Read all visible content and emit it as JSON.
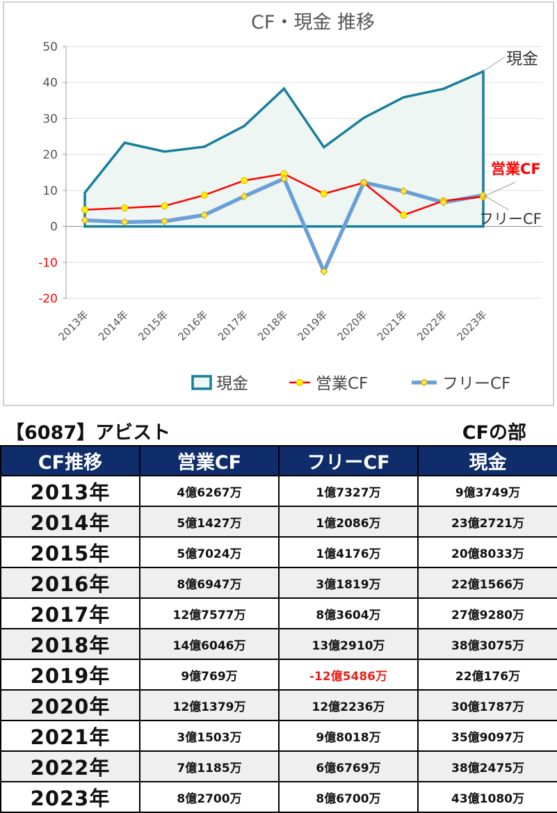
{
  "chart_data": {
    "type": "line",
    "title": "CF・現金 推移",
    "categories": [
      "2013年",
      "2014年",
      "2015年",
      "2016年",
      "2017年",
      "2018年",
      "2019年",
      "2020年",
      "2021年",
      "2022年",
      "2023年"
    ],
    "ylim": [
      -20,
      50
    ],
    "yticks": [
      "50",
      "40",
      "30",
      "20",
      "10",
      "0",
      "-10",
      "-20"
    ],
    "ytick_values": [
      50,
      40,
      30,
      20,
      10,
      0,
      -10,
      -20
    ],
    "grid": true,
    "legend": "bottom",
    "series": [
      {
        "name": "現金",
        "values": [
          9.37,
          23.27,
          20.8,
          22.16,
          27.93,
          38.31,
          22.02,
          30.18,
          35.91,
          38.25,
          43.11
        ],
        "color": "#177e9a",
        "style": "area"
      },
      {
        "name": "営業CF",
        "values": [
          4.63,
          5.14,
          5.7,
          8.69,
          12.76,
          14.6,
          9.08,
          12.14,
          3.15,
          7.12,
          8.27
        ],
        "color": "#ff0000",
        "style": "line-marker"
      },
      {
        "name": "フリーCF",
        "values": [
          1.73,
          1.21,
          1.42,
          3.18,
          8.36,
          13.29,
          -12.55,
          12.22,
          9.8,
          6.68,
          8.67
        ],
        "color": "#6a9fd8",
        "style": "line-marker"
      }
    ],
    "end_labels": {
      "cash": "現金",
      "op": "営業CF",
      "free": "フリーCF"
    },
    "end_label_colors": {
      "cash": "#333333",
      "op": "#ff0000",
      "free": "#333333"
    },
    "axis_colors": {
      "positive": "#555555",
      "negative": "#ff0000"
    }
  },
  "header": {
    "title": "【6087】アビスト",
    "section": "CFの部"
  },
  "table": {
    "columns": [
      "CF推移",
      "営業CF",
      "フリーCF",
      "現金"
    ],
    "rows": [
      {
        "year": "2013年",
        "op": "4億6267万",
        "free": "1億7327万",
        "cash": "9億3749万"
      },
      {
        "year": "2014年",
        "op": "5億1427万",
        "free": "1億2086万",
        "cash": "23億2721万"
      },
      {
        "year": "2015年",
        "op": "5億7024万",
        "free": "1億4176万",
        "cash": "20億8033万"
      },
      {
        "year": "2016年",
        "op": "8億6947万",
        "free": "3億1819万",
        "cash": "22億1566万"
      },
      {
        "year": "2017年",
        "op": "12億7577万",
        "free": "8億3604万",
        "cash": "27億9280万"
      },
      {
        "year": "2018年",
        "op": "14億6046万",
        "free": "13億2910万",
        "cash": "38億3075万"
      },
      {
        "year": "2019年",
        "op": "9億769万",
        "free": "-12億5486万",
        "cash": "22億176万"
      },
      {
        "year": "2020年",
        "op": "12億1379万",
        "free": "12億2236万",
        "cash": "30億1787万"
      },
      {
        "year": "2021年",
        "op": "3億1503万",
        "free": "9億8018万",
        "cash": "35億9097万"
      },
      {
        "year": "2022年",
        "op": "7億1185万",
        "free": "6億6769万",
        "cash": "38億2475万"
      },
      {
        "year": "2023年",
        "op": "8億2700万",
        "free": "8億6700万",
        "cash": "43億1080万"
      }
    ]
  }
}
